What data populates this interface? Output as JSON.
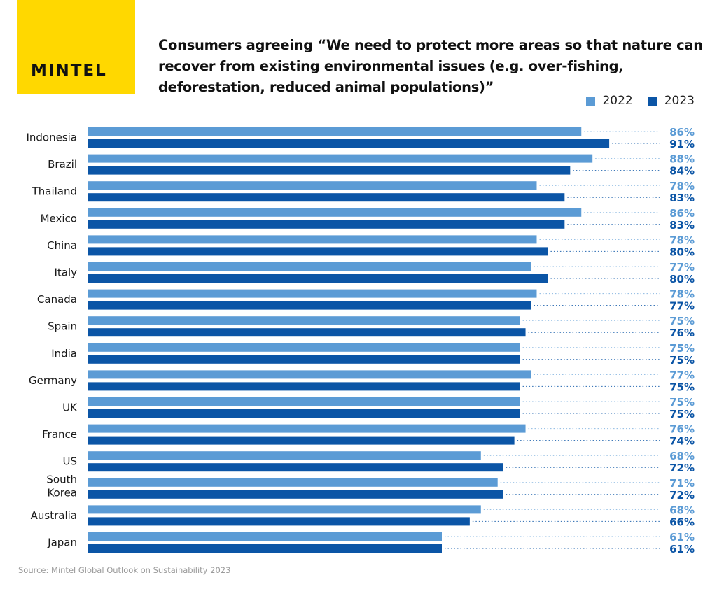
{
  "brand": {
    "logo_text": "MINTEL",
    "logo_color": "#ffd800"
  },
  "colors": {
    "s2022": "#5b9bd5",
    "s2023": "#0b55a6"
  },
  "source": "Source: Mintel Global Outlook on Sustainability 2023",
  "chart_data": {
    "type": "bar",
    "orientation": "horizontal",
    "title": "Consumers agreeing “We need to protect more areas so that nature can recover from existing environmental issues (e.g. over-fishing, deforestation, reduced animal populations)”",
    "xlabel": "",
    "ylabel": "",
    "grid": false,
    "legend_position": "top-right",
    "value_suffix": "%",
    "categories": [
      "Indonesia",
      "Brazil",
      "Thailand",
      "Mexico",
      "China",
      "Italy",
      "Canada",
      "Spain",
      "India",
      "Germany",
      "UK",
      "France",
      "US",
      "South Korea",
      "Australia",
      "Japan"
    ],
    "category_lines": [
      [
        "Indonesia"
      ],
      [
        "Brazil"
      ],
      [
        "Thailand"
      ],
      [
        "Mexico"
      ],
      [
        "China"
      ],
      [
        "Italy"
      ],
      [
        "Canada"
      ],
      [
        "Spain"
      ],
      [
        "India"
      ],
      [
        "Germany"
      ],
      [
        "UK"
      ],
      [
        "France"
      ],
      [
        "US"
      ],
      [
        "South",
        "Korea"
      ],
      [
        "Australia"
      ],
      [
        "Japan"
      ]
    ],
    "series": [
      {
        "name": "2022",
        "color": "#5b9bd5",
        "label_color": "#5b9bd5",
        "values": [
          86,
          88,
          78,
          86,
          78,
          77,
          78,
          75,
          75,
          77,
          75,
          76,
          68,
          71,
          68,
          61
        ]
      },
      {
        "name": "2023",
        "color": "#0b55a6",
        "label_color": "#0b55a6",
        "values": [
          91,
          84,
          83,
          83,
          80,
          80,
          77,
          76,
          75,
          75,
          75,
          74,
          72,
          72,
          66,
          61
        ]
      }
    ]
  }
}
